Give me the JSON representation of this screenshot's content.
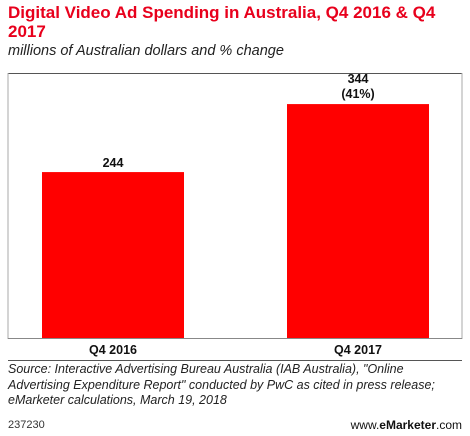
{
  "chart_data": {
    "type": "bar",
    "title": "Digital Video Ad Spending in Australia, Q4 2016 & Q4 2017",
    "subtitle": "millions of Australian dollars and % change",
    "categories": [
      "Q4 2016",
      "Q4 2017"
    ],
    "values": [
      244,
      344
    ],
    "value_labels": [
      "244",
      "344"
    ],
    "change_labels": [
      "",
      "(41%)"
    ],
    "ylim": [
      0,
      380
    ],
    "grid": false,
    "bar_color": "#ff0000"
  },
  "footer": {
    "source": "Source: Interactive Advertising Bureau Australia (IAB Australia), \"Online Advertising Expenditure Report\" conducted by PwC as cited in press release; eMarketer calculations, March 19, 2018",
    "chart_id": "237230",
    "brand_prefix": "www.",
    "brand_name": "eMarketer",
    "brand_suffix": ".com"
  }
}
